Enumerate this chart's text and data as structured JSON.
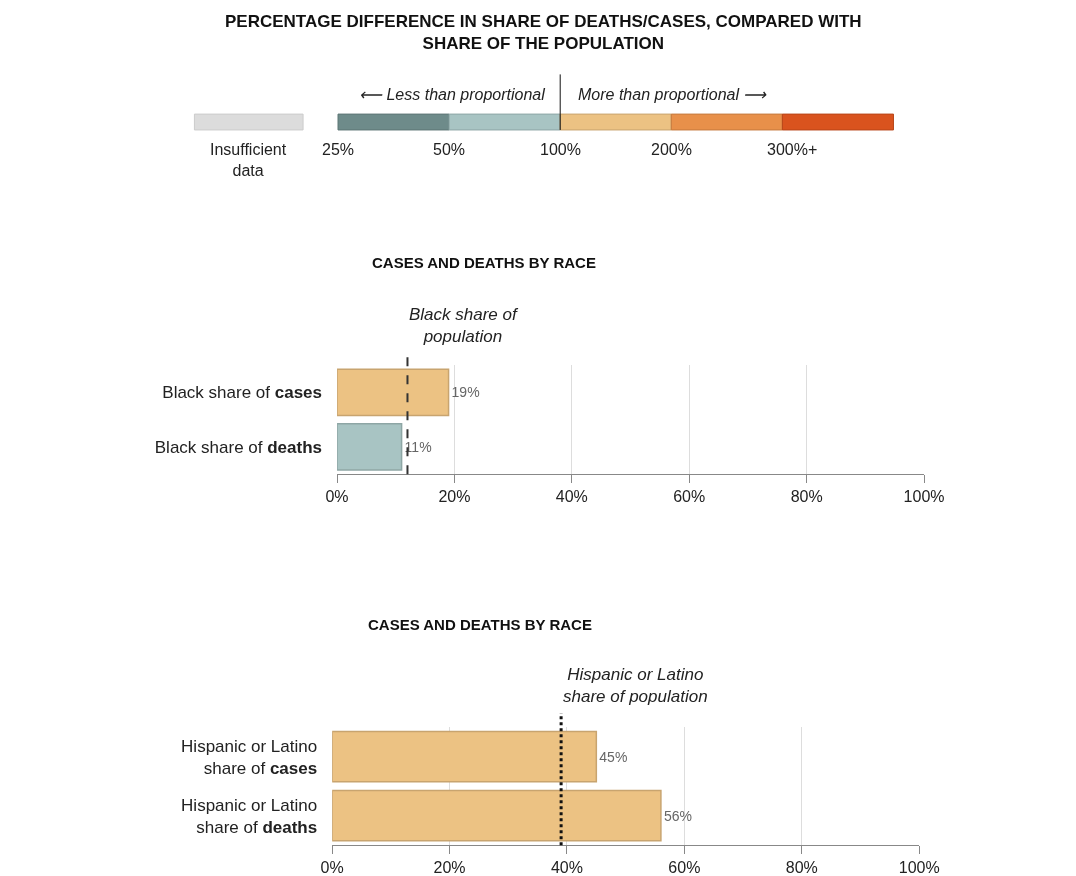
{
  "chart_data": [
    {
      "type": "other",
      "title": "PERCENTAGE DIFFERENCE IN SHARE OF DEATHS/CASES, COMPARED WITH SHARE OF THE POPULATION",
      "annotations": [
        "⟵ Less than proportional",
        "More than proportional ⟶"
      ],
      "categories": [
        "Insufficient data",
        "25%",
        "50%",
        "100%",
        "200%",
        "300%+"
      ],
      "colors": [
        "#dcdcdc",
        "#6e8b8a",
        "#a8c4c3",
        "#ecc283",
        "#e8904a",
        "#d9531e"
      ]
    },
    {
      "type": "bar",
      "orientation": "horizontal",
      "title": "CASES AND DEATHS BY RACE",
      "categories": [
        "Black share of cases",
        "Black share of deaths"
      ],
      "values": [
        19,
        11
      ],
      "colors": [
        "#ecc283",
        "#a8c4c3"
      ],
      "value_labels": [
        "19%",
        "11%"
      ],
      "xlim": [
        0,
        100
      ],
      "xticks": [
        {
          "value": 0,
          "label": "0%"
        },
        {
          "value": 20,
          "label": "20%"
        },
        {
          "value": 40,
          "label": "40%"
        },
        {
          "value": 60,
          "label": "60%"
        },
        {
          "value": 80,
          "label": "80%"
        },
        {
          "value": 100,
          "label": "100%"
        }
      ],
      "grid": "x",
      "ref_lines": [
        {
          "axis": "x",
          "value": 12,
          "label": "Black share of population",
          "line_style": "dashed",
          "color": "#333333"
        }
      ]
    },
    {
      "type": "bar",
      "orientation": "horizontal",
      "title": "CASES AND DEATHS BY RACE",
      "categories": [
        "Hispanic or Latino share of cases",
        "Hispanic or Latino share of deaths"
      ],
      "values": [
        45,
        56
      ],
      "colors": [
        "#ecc283",
        "#ecc283"
      ],
      "value_labels": [
        "45%",
        "56%"
      ],
      "xlim": [
        0,
        100
      ],
      "xticks": [
        {
          "value": 0,
          "label": "0%"
        },
        {
          "value": 20,
          "label": "20%"
        },
        {
          "value": 40,
          "label": "40%"
        },
        {
          "value": 60,
          "label": "60%"
        },
        {
          "value": 80,
          "label": "80%"
        },
        {
          "value": 100,
          "label": "100%"
        }
      ],
      "grid": "x",
      "ref_lines": [
        {
          "axis": "x",
          "value": 39,
          "label": "Hispanic or Latino share of population",
          "line_style": "dotted",
          "color": "#111111"
        }
      ]
    }
  ]
}
